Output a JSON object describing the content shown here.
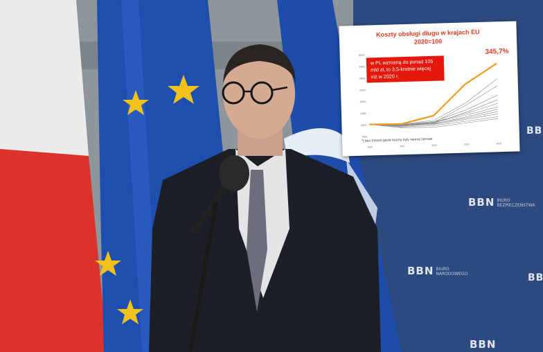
{
  "photo": {
    "logo_text": "BBN",
    "logo_subtitle_1": "BIURO",
    "logo_subtitle_2": "BEZPIECZEŃSTWA",
    "logo_subtitle_3": "NARODOWEGO"
  },
  "inset": {
    "title_line_1": "Koszty obsługi długu w krajach EU",
    "title_line_2": "2020=100",
    "callout_line_1": "w PL wzrosną do ponad 105",
    "callout_line_2": "mld zł, to 3,5-krotnie więcej",
    "callout_line_3": "niż w 2020 r.",
    "peak_label": "345,7%",
    "footnote": "*) bez Estonii gdzie koszty były niemal zerowe"
  },
  "chart_data": {
    "type": "line",
    "title": "Koszty obsługi długu w krajach EU",
    "subtitle": "2020=100",
    "x": [
      2020,
      2021,
      2022,
      2023,
      2024
    ],
    "ylim": [
      50,
      400
    ],
    "y_ticks": [
      "50%",
      "100%",
      "150%",
      "200%",
      "250%",
      "300%",
      "350%",
      "400%"
    ],
    "series": [
      {
        "name": "PL",
        "highlight": true,
        "values": [
          100,
          98,
          130,
          260,
          345.7
        ]
      },
      {
        "values": [
          100,
          97,
          110,
          180,
          280
        ]
      },
      {
        "values": [
          100,
          92,
          100,
          170,
          250
        ]
      },
      {
        "values": [
          100,
          95,
          105,
          150,
          210
        ]
      },
      {
        "values": [
          100,
          90,
          98,
          140,
          190
        ]
      },
      {
        "values": [
          100,
          93,
          102,
          135,
          175
        ]
      },
      {
        "values": [
          100,
          96,
          101,
          128,
          160
        ]
      },
      {
        "values": [
          100,
          88,
          95,
          120,
          150
        ]
      },
      {
        "values": [
          100,
          94,
          97,
          115,
          140
        ]
      },
      {
        "values": [
          100,
          91,
          93,
          110,
          130
        ]
      },
      {
        "values": [
          100,
          85,
          88,
          102,
          118
        ]
      },
      {
        "values": [
          100,
          82,
          80,
          95,
          110
        ]
      }
    ],
    "colors": {
      "highlight": "#f39a1f",
      "other": "#8a8a8a"
    }
  }
}
